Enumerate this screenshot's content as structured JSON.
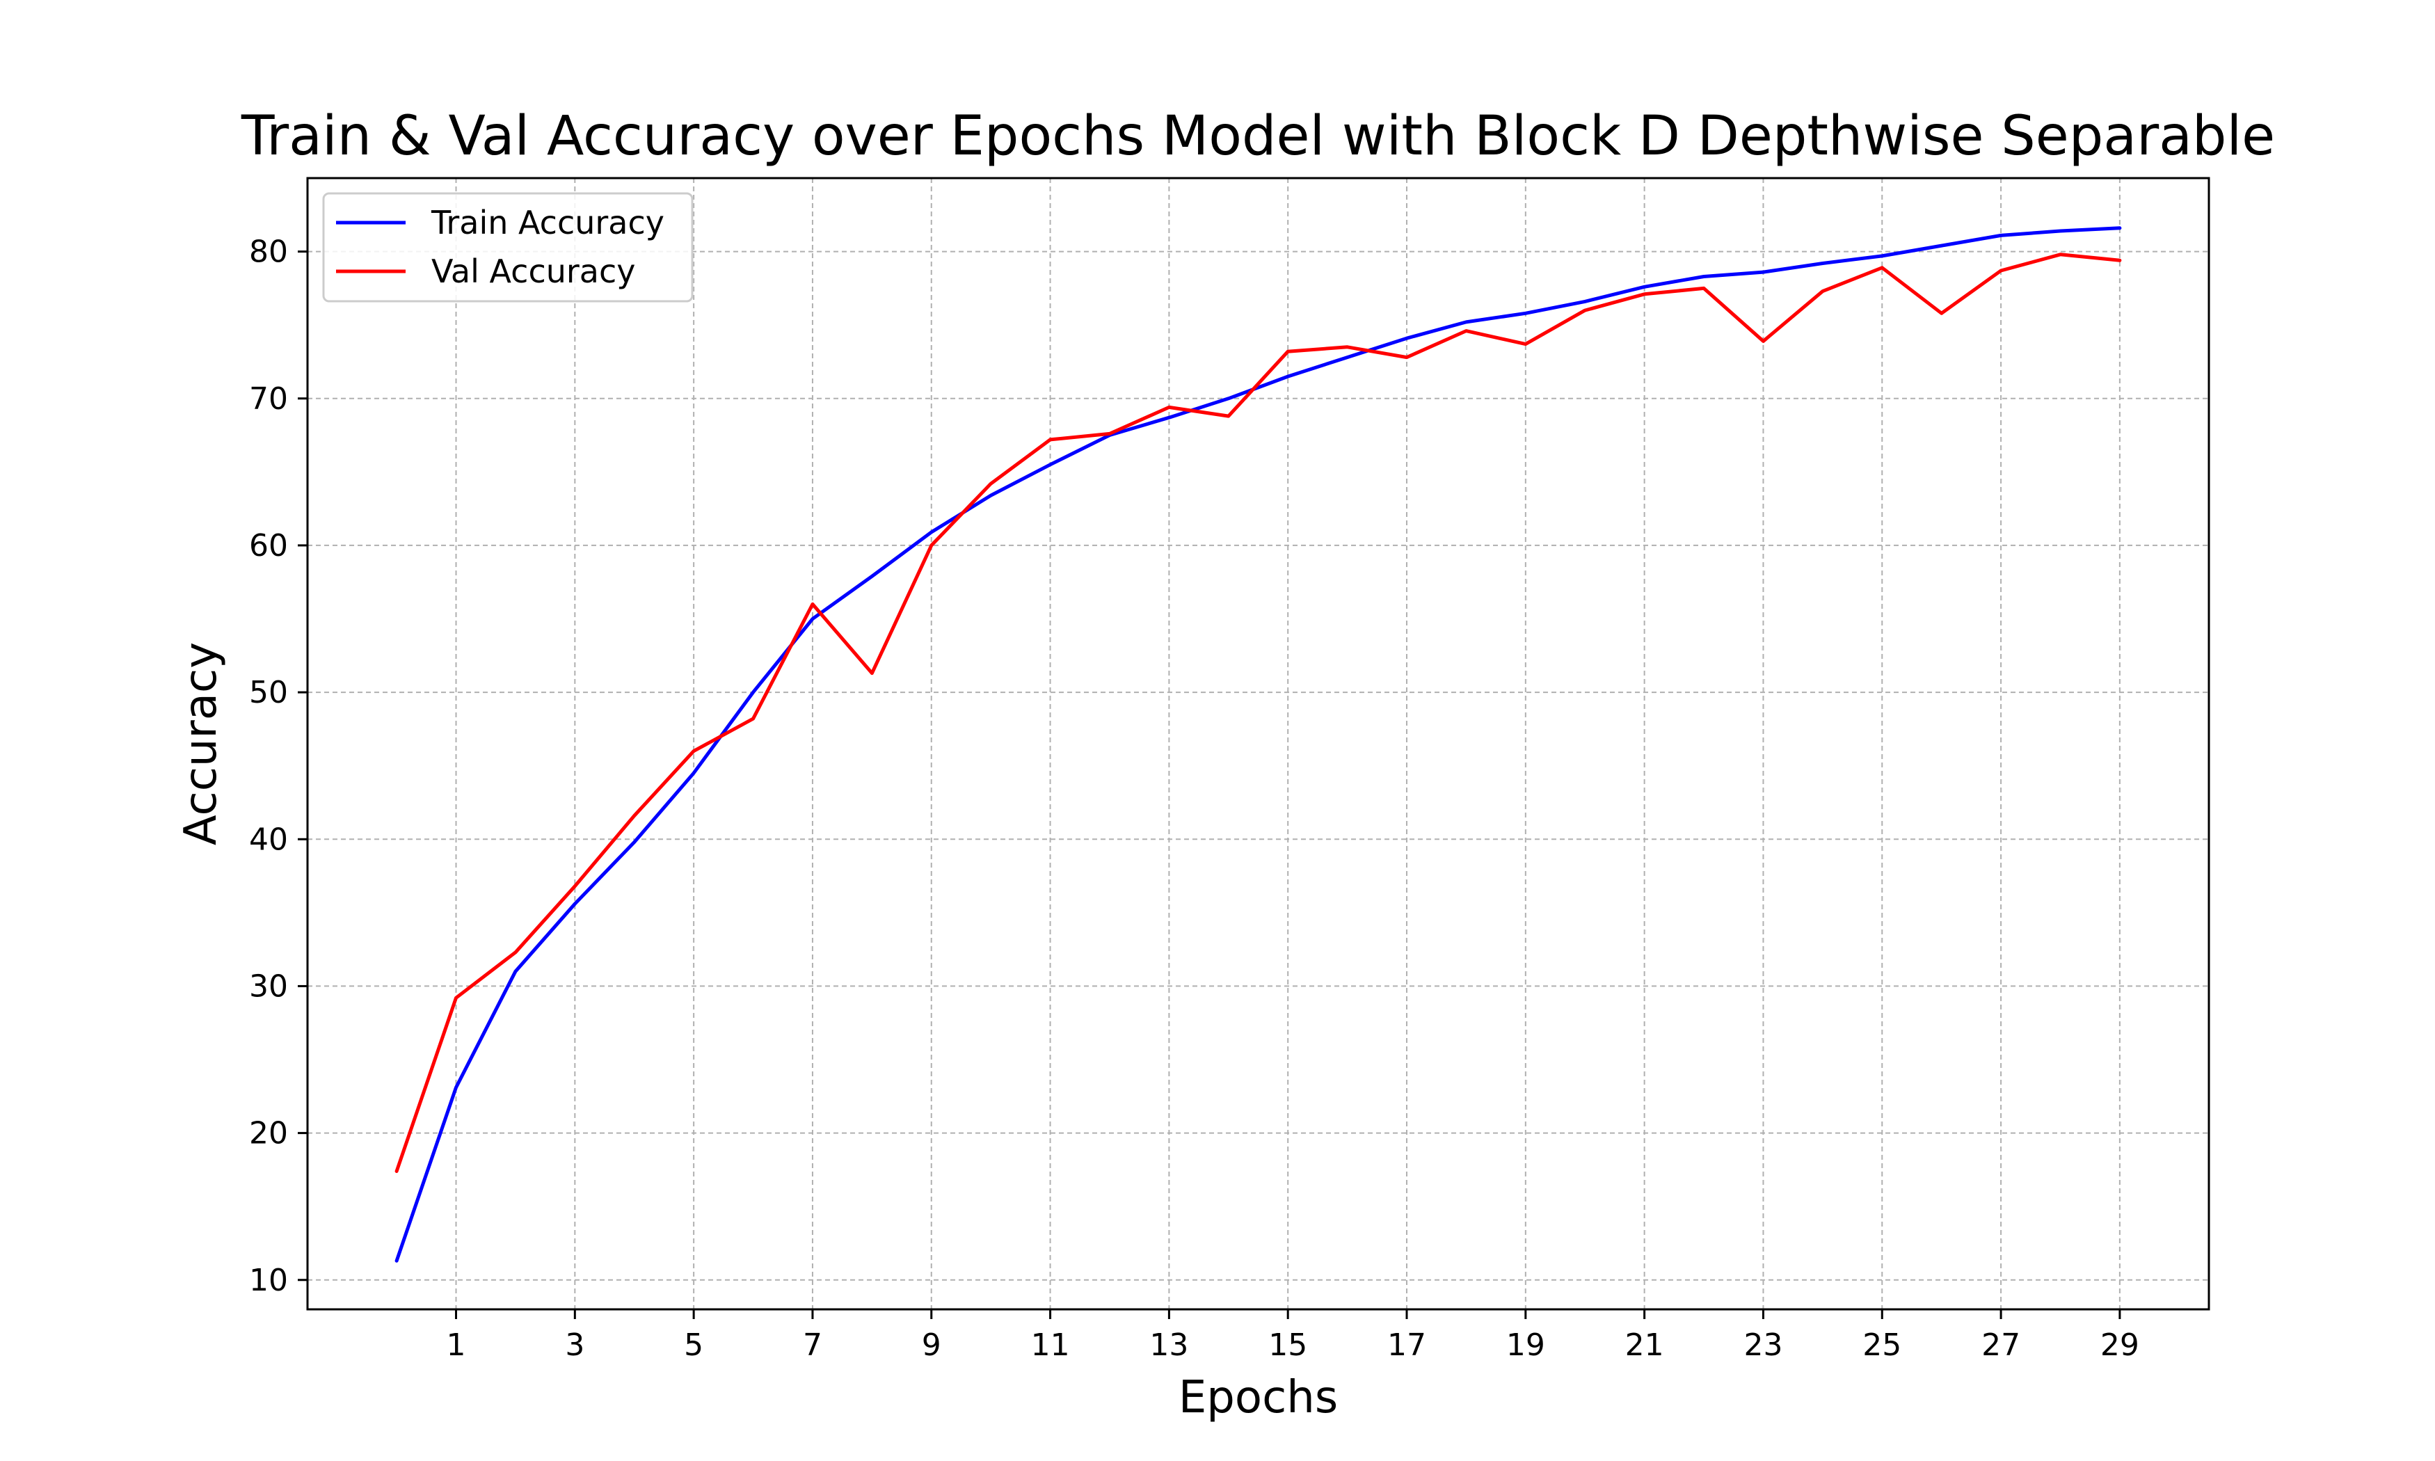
{
  "chart_data": {
    "type": "line",
    "title": "Train & Val Accuracy over Epochs Model with Block D Depthwise Separable",
    "xlabel": "Epochs",
    "ylabel": "Accuracy",
    "xlim": [
      -1.5,
      30.5
    ],
    "ylim": [
      8,
      85
    ],
    "x": [
      0,
      1,
      2,
      3,
      4,
      5,
      6,
      7,
      8,
      9,
      10,
      11,
      12,
      13,
      14,
      15,
      16,
      17,
      18,
      19,
      20,
      21,
      22,
      23,
      24,
      25,
      26,
      27,
      28,
      29
    ],
    "xticks": [
      1,
      3,
      5,
      7,
      9,
      11,
      13,
      15,
      17,
      19,
      21,
      23,
      25,
      27,
      29
    ],
    "yticks": [
      10,
      20,
      30,
      40,
      50,
      60,
      70,
      80
    ],
    "grid": true,
    "legend_position": "top-left",
    "series": [
      {
        "name": "Train Accuracy",
        "color": "#0000ff",
        "values": [
          11.3,
          23.1,
          31.0,
          35.6,
          39.8,
          44.5,
          50.0,
          55.0,
          57.9,
          60.9,
          63.4,
          65.5,
          67.5,
          68.7,
          70.0,
          71.5,
          72.8,
          74.1,
          75.2,
          75.8,
          76.6,
          77.6,
          78.3,
          78.6,
          79.2,
          79.7,
          80.4,
          81.1,
          81.4,
          81.6
        ]
      },
      {
        "name": "Val Accuracy",
        "color": "#ff0000",
        "values": [
          17.4,
          29.2,
          32.3,
          36.8,
          41.6,
          46.0,
          48.2,
          56.0,
          51.3,
          60.0,
          64.2,
          67.2,
          67.6,
          69.4,
          68.8,
          73.2,
          73.5,
          72.8,
          74.6,
          73.7,
          76.0,
          77.1,
          77.5,
          73.9,
          77.3,
          78.9,
          75.8,
          78.7,
          79.8,
          79.4
        ]
      }
    ]
  }
}
